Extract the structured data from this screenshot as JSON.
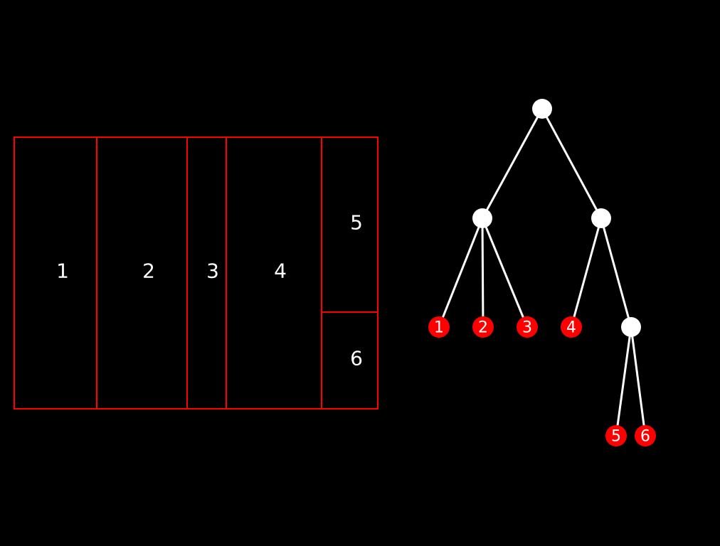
{
  "colors": {
    "background": "#000000",
    "panel_border": "#ff0000",
    "panel_label": "#ffffff",
    "edge": "#ffffff",
    "internal_node": "#ffffff",
    "leaf_node": "#ff0000",
    "leaf_label": "#ffffff"
  },
  "layout_diagram": {
    "panels": [
      {
        "id": "1",
        "label": "1"
      },
      {
        "id": "2",
        "label": "2"
      },
      {
        "id": "3",
        "label": "3"
      },
      {
        "id": "4",
        "label": "4"
      },
      {
        "id": "5",
        "label": "5"
      },
      {
        "id": "6",
        "label": "6"
      }
    ]
  },
  "tree": {
    "nodes": [
      {
        "id": "root",
        "type": "internal",
        "label": ""
      },
      {
        "id": "a",
        "type": "internal",
        "label": ""
      },
      {
        "id": "b",
        "type": "internal",
        "label": ""
      },
      {
        "id": "c",
        "type": "internal",
        "label": ""
      },
      {
        "id": "l1",
        "type": "leaf",
        "label": "1"
      },
      {
        "id": "l2",
        "type": "leaf",
        "label": "2"
      },
      {
        "id": "l3",
        "type": "leaf",
        "label": "3"
      },
      {
        "id": "l4",
        "type": "leaf",
        "label": "4"
      },
      {
        "id": "l5",
        "type": "leaf",
        "label": "5"
      },
      {
        "id": "l6",
        "type": "leaf",
        "label": "6"
      }
    ],
    "edges": [
      {
        "from": "root",
        "to": "a"
      },
      {
        "from": "root",
        "to": "b"
      },
      {
        "from": "a",
        "to": "l1"
      },
      {
        "from": "a",
        "to": "l2"
      },
      {
        "from": "a",
        "to": "l3"
      },
      {
        "from": "b",
        "to": "l4"
      },
      {
        "from": "b",
        "to": "c"
      },
      {
        "from": "c",
        "to": "l5"
      },
      {
        "from": "c",
        "to": "l6"
      }
    ]
  }
}
